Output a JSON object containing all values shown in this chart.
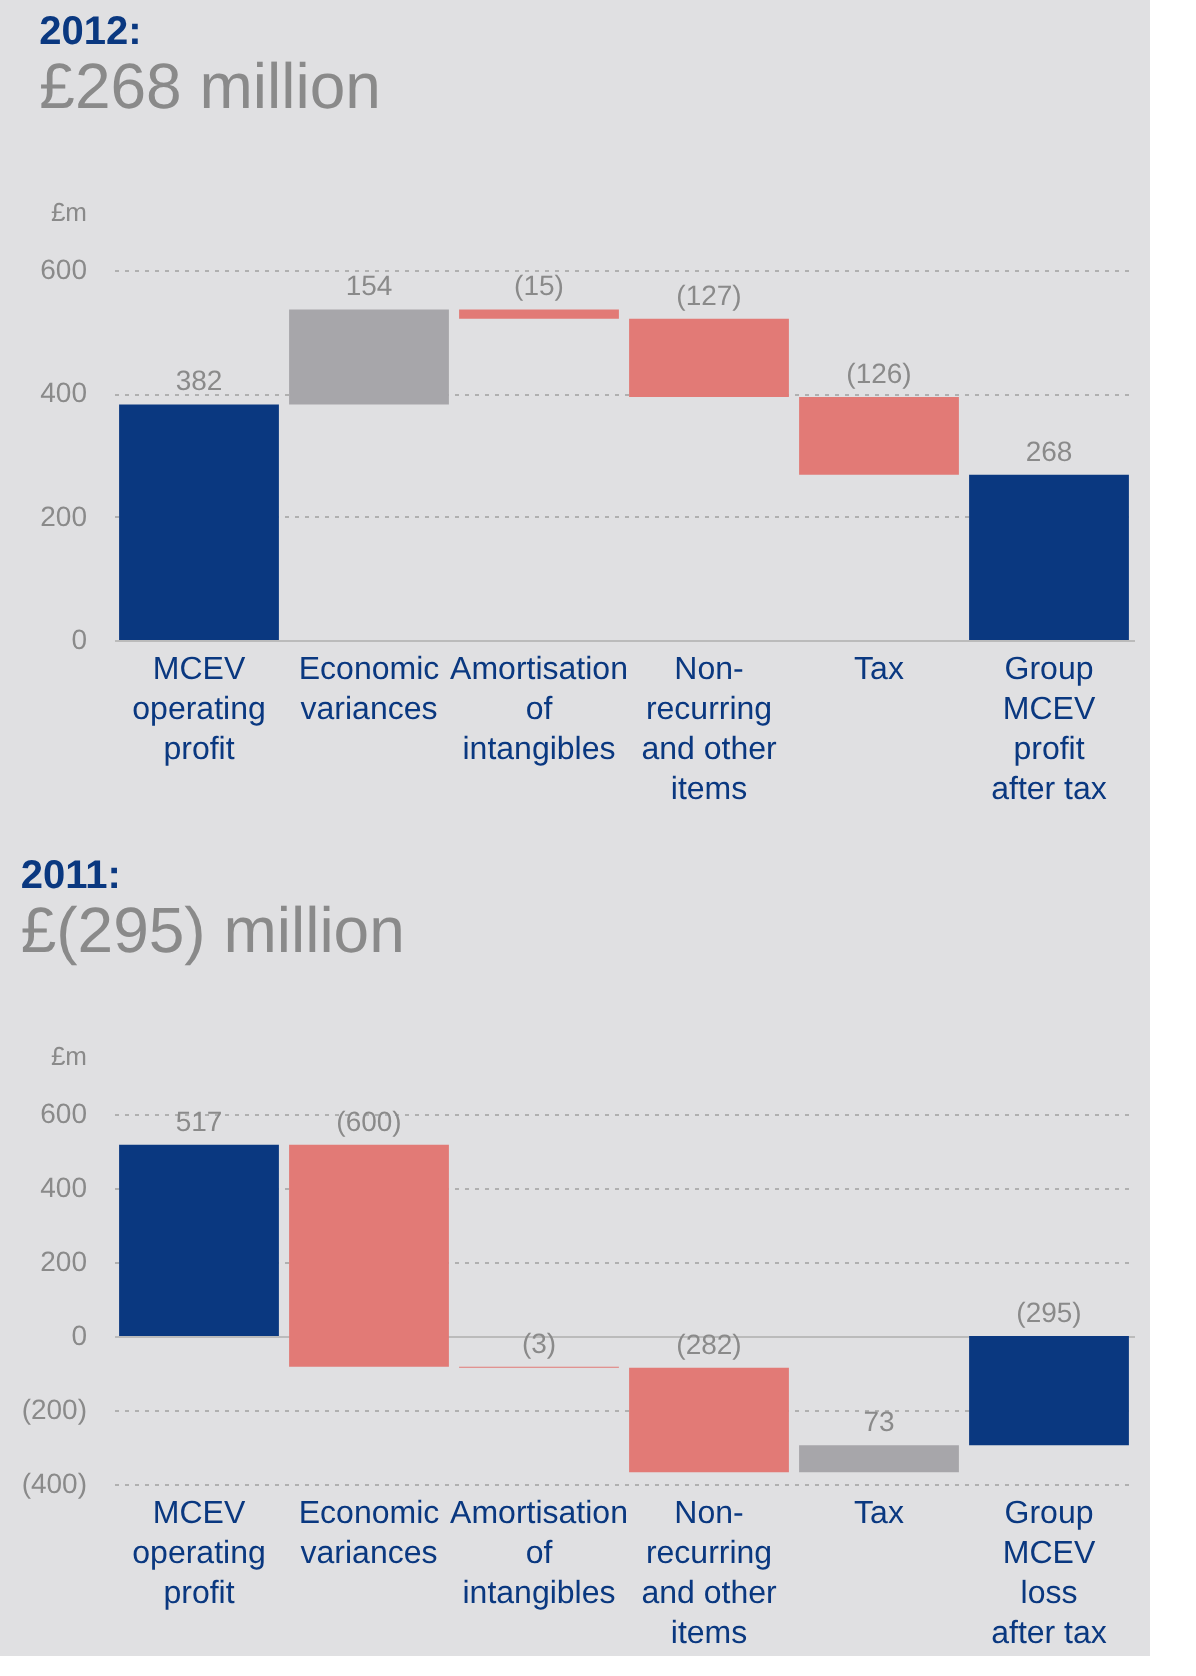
{
  "chart_data": [
    {
      "type": "bar",
      "title": "2012:",
      "subtitle": "£268 million",
      "ylabel": "£m",
      "categories": [
        "MCEV\noperating\nprofit",
        "Economic\nvariances",
        "Amortisation\nof\nintangibles",
        "Non-\nrecurring\nand other\nitems",
        "Tax",
        "Group\nMCEV\nprofit\nafter tax"
      ],
      "values": [
        382,
        154,
        -15,
        -127,
        -126,
        268
      ],
      "base": [
        0,
        382,
        536,
        521,
        394,
        0
      ],
      "colors": [
        "#0a3880",
        "#a7a6aa",
        "#e27a76",
        "#e27a76",
        "#e27a76",
        "#0a3880"
      ],
      "value_labels": [
        "382",
        "154",
        "(15)",
        "(127)",
        "(126)",
        "268"
      ],
      "ylim": [
        0,
        600
      ],
      "yticks": [
        0,
        200,
        400,
        600
      ],
      "grid": "y"
    },
    {
      "type": "bar",
      "title": "2011:",
      "subtitle": "£(295) million",
      "ylabel": "£m",
      "categories": [
        "MCEV\noperating\nprofit",
        "Economic\nvariances",
        "Amortisation\nof\nintangibles",
        "Non-\nrecurring\nand other\nitems",
        "Tax",
        "Group\nMCEV\nloss\nafter tax"
      ],
      "values": [
        517,
        -600,
        -3,
        -282,
        73,
        -295
      ],
      "base": [
        0,
        517,
        -83,
        -86,
        -368,
        0
      ],
      "colors": [
        "#0a3880",
        "#e27a76",
        "#e27a76",
        "#e27a76",
        "#a7a6aa",
        "#0a3880"
      ],
      "value_labels": [
        "517",
        "(600)",
        "(3)",
        "(282)",
        "73",
        "(295)"
      ],
      "ylim": [
        -400,
        600
      ],
      "yticks": [
        {
          "value": -400,
          "label": "(400)"
        },
        {
          "value": -200,
          "label": "(200)"
        },
        0,
        200,
        400,
        600
      ],
      "grid": "y"
    }
  ]
}
